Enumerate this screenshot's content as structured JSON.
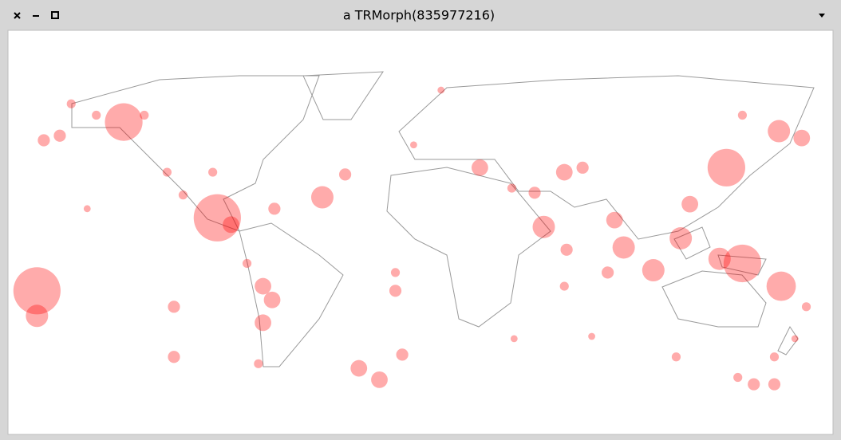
{
  "window": {
    "title": "a TRMorph(835977216)"
  },
  "chart_data": {
    "type": "scatter",
    "color": "#ff0000",
    "xlim": [
      -180,
      180
    ],
    "ylim": [
      -82,
      90
    ],
    "x": [
      -130,
      -153,
      -165,
      -158,
      -142,
      -121,
      -111,
      -104,
      -89,
      -83,
      -64,
      -43,
      -33,
      -76,
      -69,
      -65,
      -69,
      -71,
      -108,
      -108,
      -168,
      -168,
      -27,
      -18,
      -8,
      -11,
      -11,
      9,
      -3,
      26,
      40,
      50,
      54,
      64,
      63,
      63,
      71,
      85,
      89,
      102,
      114,
      134,
      157,
      167,
      141,
      141,
      131,
      158,
      169,
      164,
      155,
      146,
      155,
      139,
      112,
      75,
      41,
      82,
      -146,
      -91,
      118
    ],
    "y": [
      55,
      63,
      47,
      49,
      58,
      58,
      33,
      23,
      13,
      10,
      17,
      22,
      32,
      -7,
      -17,
      -23,
      -33,
      -51,
      -26,
      -48,
      -19,
      -30,
      -53,
      -58,
      -47,
      -19,
      -11,
      69,
      45,
      35,
      26,
      24,
      9,
      -1,
      -17,
      33,
      35,
      12,
      0,
      -10,
      4,
      35,
      51,
      48,
      58,
      -7,
      -5,
      -17,
      -26,
      -40,
      -48,
      -60,
      -60,
      -57,
      -48,
      -39,
      -40,
      -11,
      17,
      33,
      19
    ],
    "sizes": [
      8.5,
      6,
      6.5,
      6.5,
      6,
      6,
      6,
      6,
      9,
      7,
      6.5,
      7.5,
      6.5,
      6,
      7,
      7,
      7,
      6,
      6.5,
      6.5,
      9,
      7.5,
      7,
      7,
      6.5,
      6.5,
      6,
      5.5,
      5.5,
      7,
      6,
      6.5,
      7.5,
      6.5,
      6,
      7,
      6.5,
      7,
      7.5,
      7.5,
      7.5,
      8.5,
      7.5,
      7,
      6,
      8.5,
      7.5,
      8,
      6,
      5.5,
      6,
      6.5,
      6.5,
      6,
      6,
      5.5,
      5.5,
      6.5,
      5.5,
      6,
      7
    ]
  }
}
